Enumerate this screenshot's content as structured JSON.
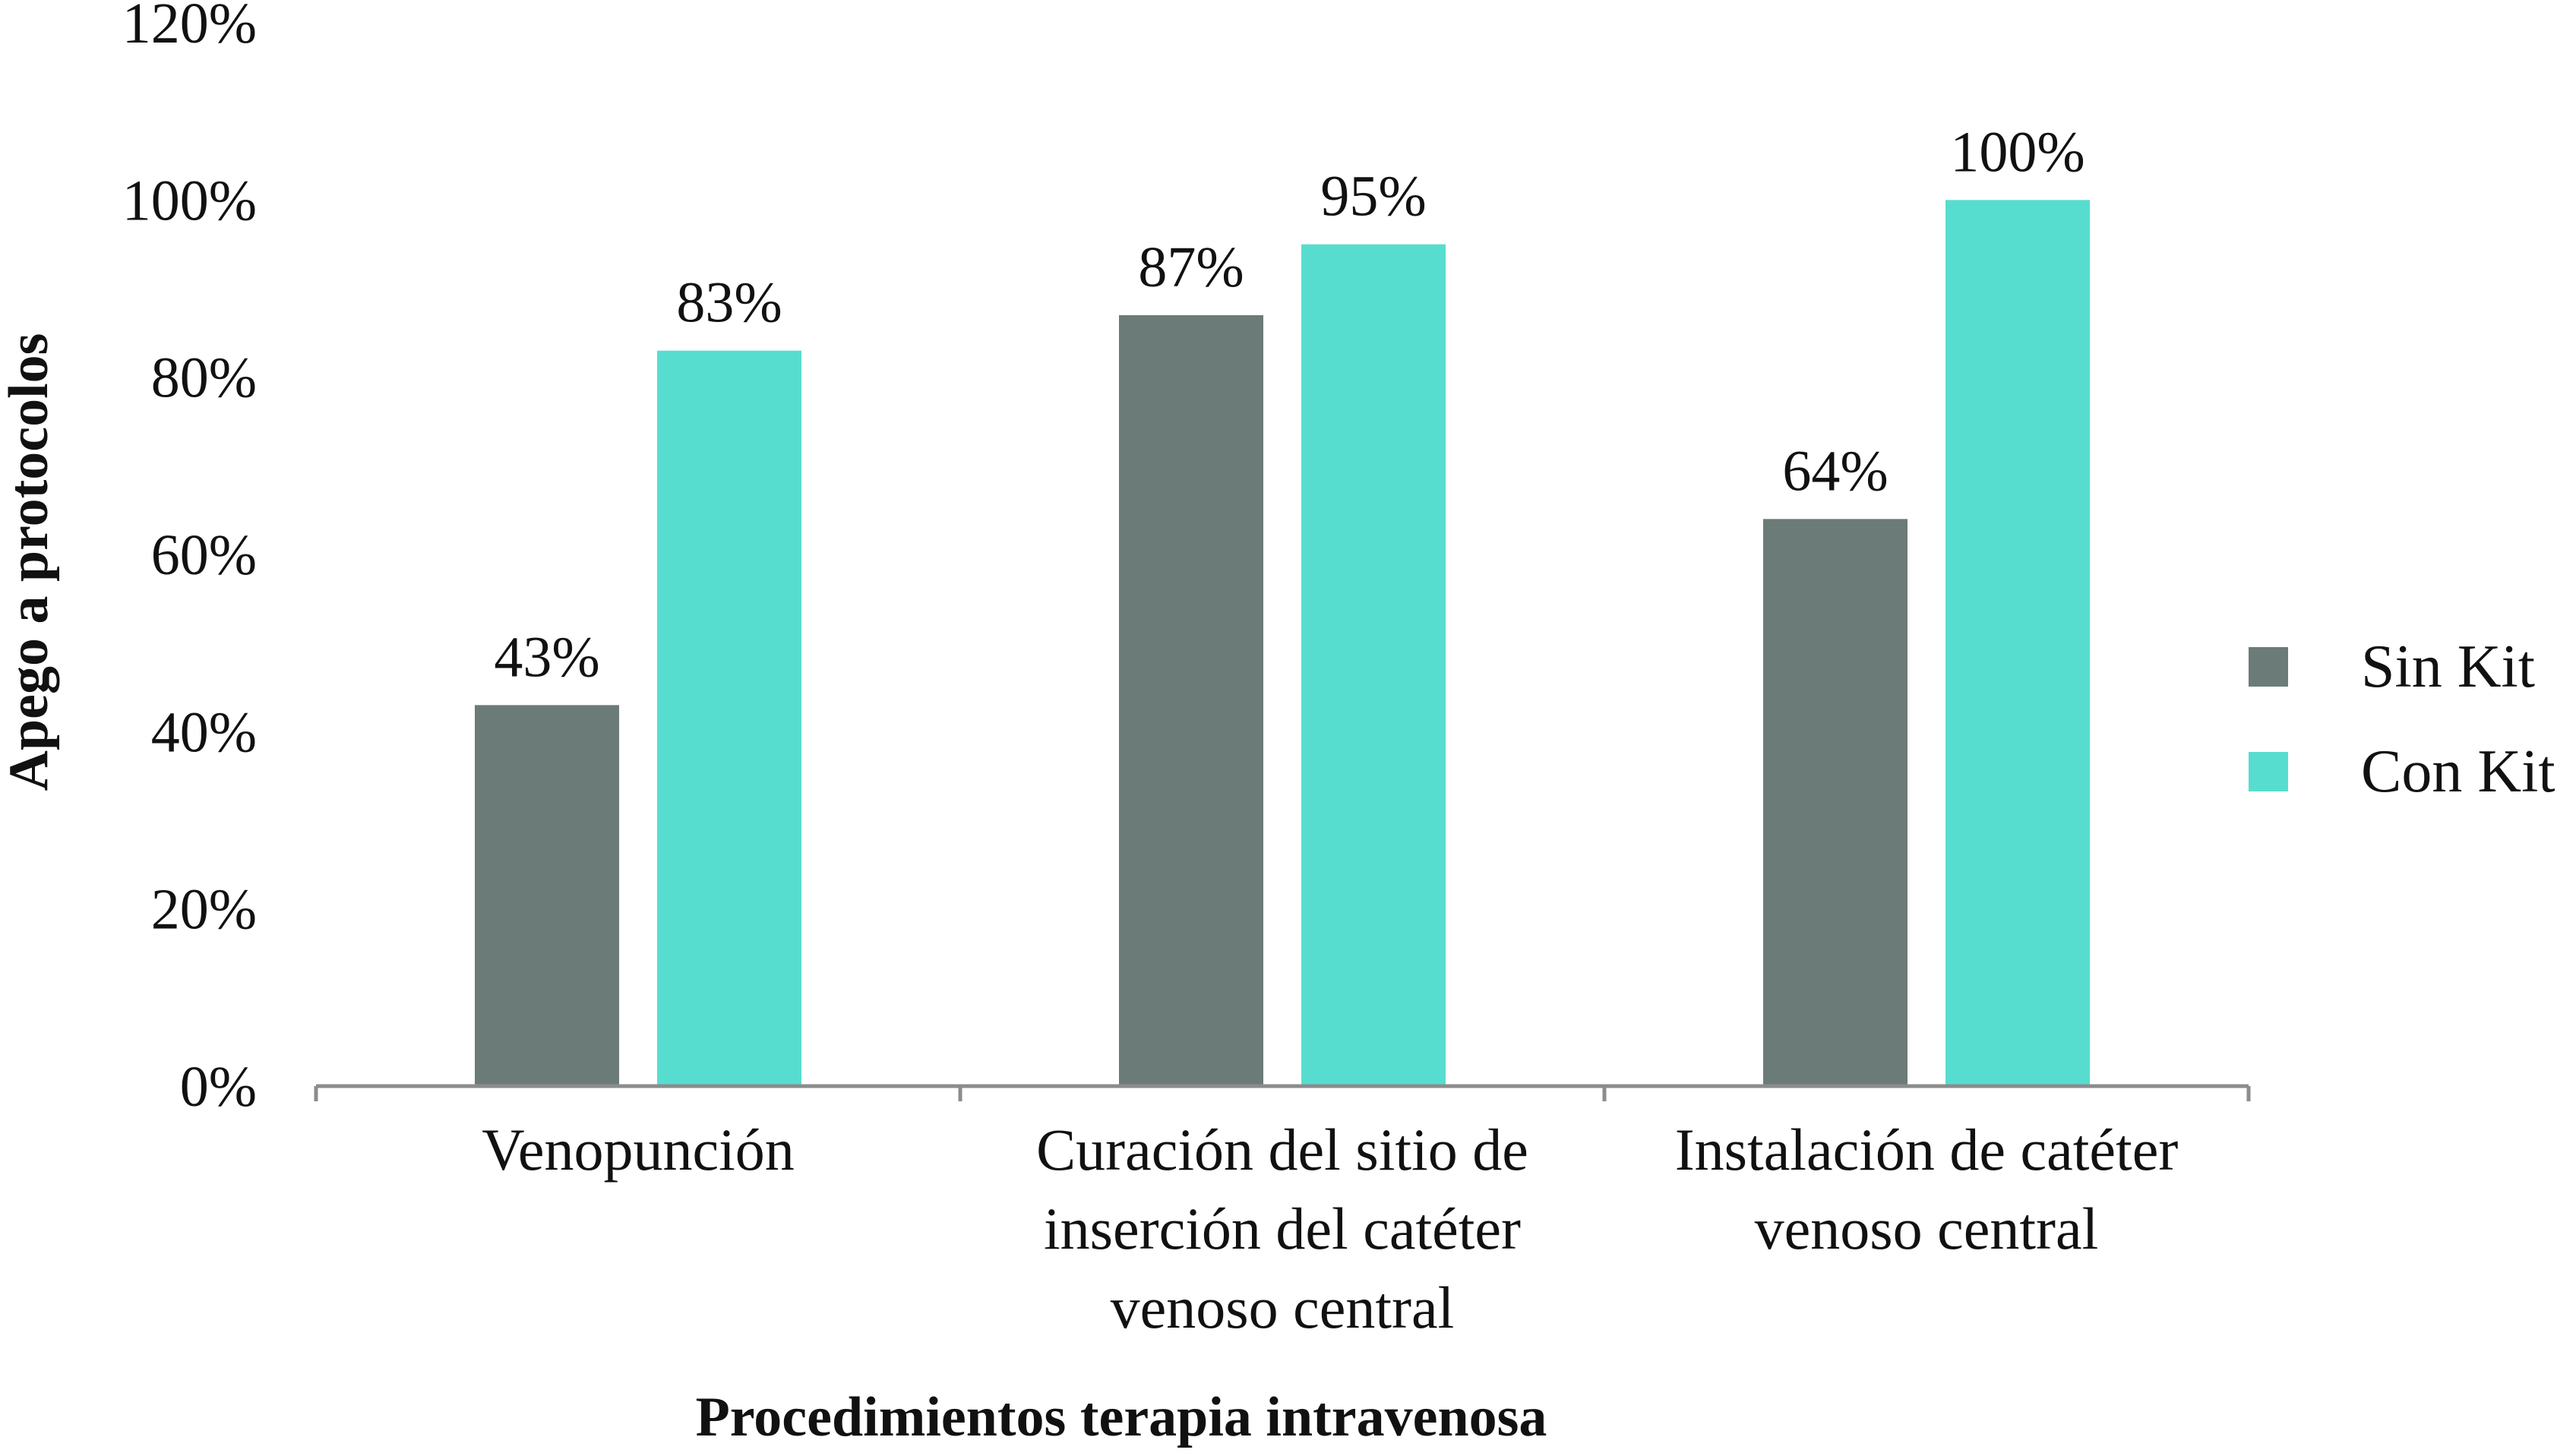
{
  "chart_data": {
    "type": "bar",
    "xlabel": "Procedimientos terapia intravenosa",
    "ylabel": "Apego a protocolos",
    "ylim": [
      0,
      120
    ],
    "y_ticks": [
      "0%",
      "20%",
      "40%",
      "60%",
      "80%",
      "100%",
      "120%"
    ],
    "y_tick_values": [
      0,
      20,
      40,
      60,
      80,
      100,
      120
    ],
    "categories": [
      [
        "Venopunción"
      ],
      [
        "Curación del sitio de",
        "inserción del catéter",
        "venoso central"
      ],
      [
        "Instalación de catéter",
        "venoso central"
      ]
    ],
    "series": [
      {
        "name": "Sin Kit",
        "color": "#6B7B78",
        "values": [
          43,
          87,
          64
        ],
        "labels": [
          "43%",
          "87%",
          "64%"
        ]
      },
      {
        "name": "Con Kit",
        "color": "#57DDCF",
        "values": [
          83,
          95,
          100
        ],
        "labels": [
          "83%",
          "95%",
          "100%"
        ]
      }
    ],
    "grid": false,
    "legend_position": "right",
    "axis_color": "#8C8C8C"
  }
}
